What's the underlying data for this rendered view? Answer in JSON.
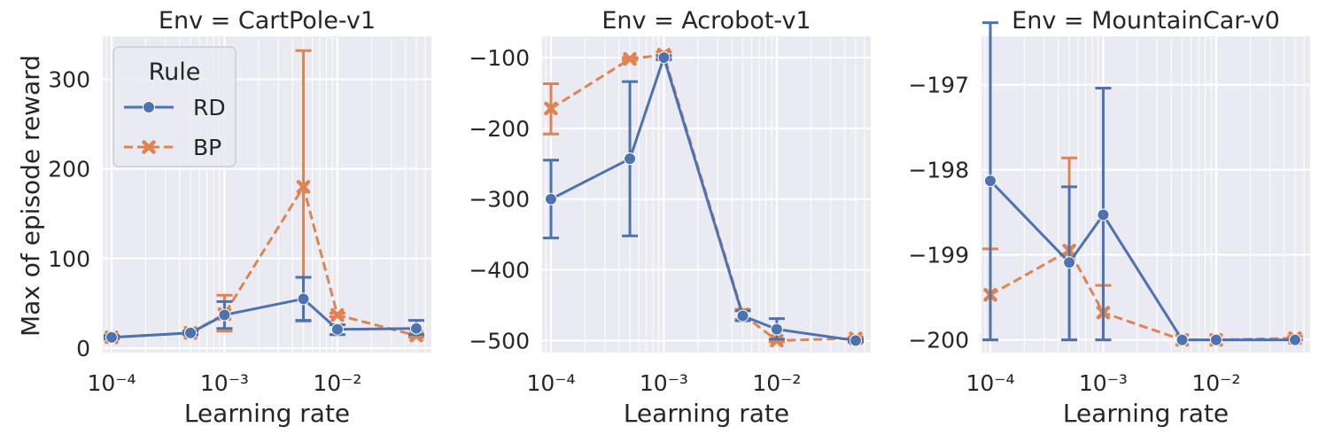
{
  "ylabel": "Max of episode reward",
  "legend": {
    "title": "Rule",
    "items": [
      {
        "name": "RD",
        "color": "#4c72b0",
        "marker": "circle",
        "dash": "solid"
      },
      {
        "name": "BP",
        "color": "#dd8452",
        "marker": "x",
        "dash": "dashed"
      }
    ],
    "placement": "upper-left of first panel"
  },
  "colors": {
    "axes_bg": "#eaeaf2",
    "grid": "#ffffff",
    "rd": "#4c72b0",
    "bp": "#dd8452"
  },
  "chart_data": [
    {
      "type": "line",
      "title": "Env = CartPole-v1",
      "xlabel": "Learning rate",
      "ylabel": "Max of episode reward",
      "xscale": "log",
      "xlim": [
        8.35e-05,
        0.068
      ],
      "ylim": [
        -5,
        348
      ],
      "xticks": [
        {
          "value": 0.0001,
          "label": "10⁻⁴"
        },
        {
          "value": 0.001,
          "label": "10⁻³"
        },
        {
          "value": 0.01,
          "label": "10⁻²"
        }
      ],
      "yticks": [
        {
          "value": 0,
          "label": "0"
        },
        {
          "value": 100,
          "label": "100"
        },
        {
          "value": 200,
          "label": "200"
        },
        {
          "value": 300,
          "label": "300"
        }
      ],
      "grid": true,
      "x": [
        0.0001,
        0.0005,
        0.001,
        0.005,
        0.01,
        0.05
      ],
      "series": [
        {
          "name": "RD",
          "values": [
            12,
            17,
            37,
            55,
            21,
            22
          ],
          "err_low": [
            11,
            15,
            22,
            31,
            15,
            15
          ],
          "err_high": [
            14,
            19,
            52,
            79,
            26,
            31
          ]
        },
        {
          "name": "BP",
          "values": [
            12,
            17,
            38,
            180,
            37,
            14
          ],
          "err_low": [
            10,
            15,
            19,
            30,
            35,
            12
          ],
          "err_high": [
            14,
            19,
            59,
            332,
            39,
            16
          ]
        }
      ]
    },
    {
      "type": "line",
      "title": "Env = Acrobot-v1",
      "xlabel": "Learning rate",
      "xscale": "log",
      "xlim": [
        8.35e-05,
        0.068
      ],
      "ylim": [
        -517,
        -70
      ],
      "xticks": [
        {
          "value": 0.0001,
          "label": "10⁻⁴"
        },
        {
          "value": 0.001,
          "label": "10⁻³"
        },
        {
          "value": 0.01,
          "label": "10⁻²"
        }
      ],
      "yticks": [
        {
          "value": -100,
          "label": "−100"
        },
        {
          "value": -200,
          "label": "−200"
        },
        {
          "value": -300,
          "label": "−300"
        },
        {
          "value": -400,
          "label": "−400"
        },
        {
          "value": -500,
          "label": "−500"
        }
      ],
      "grid": true,
      "x": [
        0.0001,
        0.0005,
        0.001,
        0.005,
        0.01,
        0.05
      ],
      "series": [
        {
          "name": "RD",
          "values": [
            -300,
            -243,
            -100,
            -465,
            -484,
            -500
          ],
          "err_low": [
            -355,
            -352,
            -103,
            -472,
            -498,
            -502
          ],
          "err_high": [
            -245,
            -134,
            -97,
            -458,
            -469,
            -498
          ]
        },
        {
          "name": "BP",
          "values": [
            -172,
            -102,
            -96,
            -463,
            -500,
            -497
          ],
          "err_low": [
            -208,
            -104,
            -100,
            -470,
            -502,
            -499
          ],
          "err_high": [
            -137,
            -100,
            -92,
            -456,
            -498,
            -495
          ]
        }
      ]
    },
    {
      "type": "line",
      "title": "Env = MountainCar-v0",
      "xlabel": "Learning rate",
      "xscale": "log",
      "xlim": [
        8.35e-05,
        0.068
      ],
      "ylim": [
        -200.15,
        -196.43
      ],
      "xticks": [
        {
          "value": 0.0001,
          "label": "10⁻⁴"
        },
        {
          "value": 0.001,
          "label": "10⁻³"
        },
        {
          "value": 0.01,
          "label": "10⁻²"
        }
      ],
      "yticks": [
        {
          "value": -197,
          "label": "−197"
        },
        {
          "value": -198,
          "label": "−198"
        },
        {
          "value": -199,
          "label": "−199"
        },
        {
          "value": -200,
          "label": "−200"
        }
      ],
      "grid": true,
      "x": [
        0.0001,
        0.0005,
        0.001,
        0.005,
        0.01,
        0.05
      ],
      "series": [
        {
          "name": "RD",
          "values": [
            -198.13,
            -199.09,
            -198.53,
            -200,
            -200,
            -200
          ],
          "err_low": [
            -200,
            -200,
            -200,
            -200,
            -200,
            -200
          ],
          "err_high": [
            -196.27,
            -198.2,
            -197.04,
            -200,
            -200,
            -200
          ]
        },
        {
          "name": "BP",
          "values": [
            -199.47,
            -198.95,
            -199.68,
            -200,
            -200,
            -199.98
          ],
          "err_low": [
            -200,
            -200,
            -200,
            -200,
            -200,
            -200
          ],
          "err_high": [
            -198.93,
            -197.86,
            -199.36,
            -200,
            -200,
            -199.96
          ]
        }
      ]
    }
  ]
}
